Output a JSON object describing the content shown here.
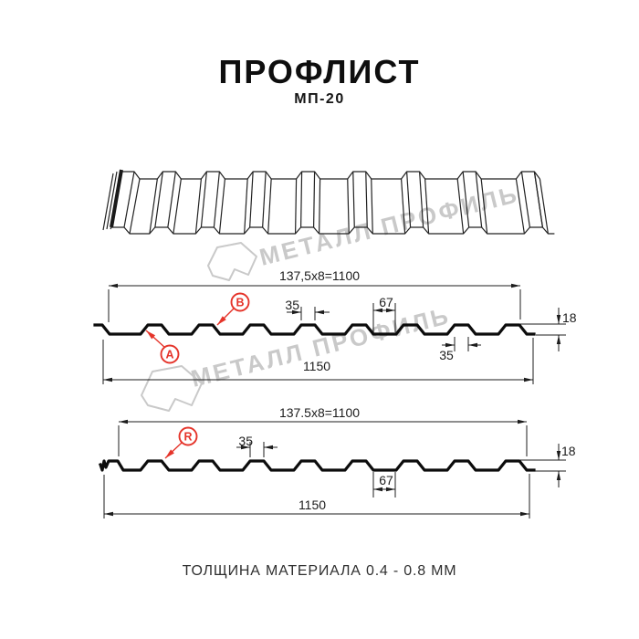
{
  "title": "ПРОФЛИСТ",
  "subtitle": "МП-20",
  "footer": "ТОЛЩИНА МАТЕРИАЛА 0.4 - 0.8 ММ",
  "watermark": {
    "text": "МЕТАЛЛ ПРОФИЛЬ"
  },
  "colors": {
    "accent_red": "#e5342a",
    "line": "#1c1c1c",
    "watermark_gray": "#c9c9c9"
  },
  "section_a": {
    "top_dim": "137,5x8=1100",
    "bottom_dim": "1150",
    "rib_top_width": "35",
    "valley_width": "67",
    "rib_bottom_width": "35",
    "height": "18",
    "label_a": "A",
    "label_b": "B"
  },
  "section_b": {
    "top_dim": "137.5x8=1100",
    "bottom_dim": "1150",
    "rib_top_width": "35",
    "valley_width": "67",
    "height": "18",
    "label_r": "R"
  }
}
